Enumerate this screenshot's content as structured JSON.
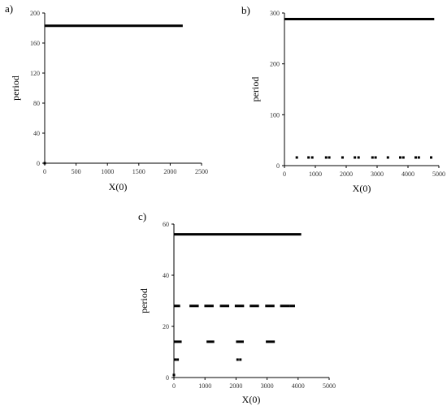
{
  "chart_data": [
    {
      "type": "scatter",
      "panel_label": "a)",
      "xlabel": "X(0)",
      "ylabel": "period",
      "xlim": [
        0,
        2500
      ],
      "ylim": [
        0,
        200
      ],
      "xticks": [
        0,
        500,
        1000,
        1500,
        2000,
        2500
      ],
      "yticks": [
        0,
        40,
        80,
        120,
        160,
        200
      ],
      "segments": [
        {
          "x": [
            0,
            2200
          ],
          "y": 183
        }
      ],
      "points": [
        {
          "x": 0,
          "y": 0
        }
      ]
    },
    {
      "type": "scatter",
      "panel_label": "b)",
      "xlabel": "X(0)",
      "ylabel": "period",
      "xlim": [
        0,
        5000
      ],
      "ylim": [
        0,
        300
      ],
      "xticks": [
        0,
        1000,
        2000,
        3000,
        4000,
        5000
      ],
      "yticks": [
        0,
        100,
        200,
        300
      ],
      "segments": [
        {
          "x": [
            0,
            4850
          ],
          "y": 288
        }
      ],
      "points": [
        {
          "x": 400,
          "y": 16
        },
        {
          "x": 780,
          "y": 16
        },
        {
          "x": 900,
          "y": 16
        },
        {
          "x": 1350,
          "y": 16
        },
        {
          "x": 1450,
          "y": 16
        },
        {
          "x": 1880,
          "y": 16
        },
        {
          "x": 2280,
          "y": 16
        },
        {
          "x": 2400,
          "y": 16
        },
        {
          "x": 2850,
          "y": 16
        },
        {
          "x": 2950,
          "y": 16
        },
        {
          "x": 3350,
          "y": 16
        },
        {
          "x": 3750,
          "y": 16
        },
        {
          "x": 3850,
          "y": 16
        },
        {
          "x": 4250,
          "y": 16
        },
        {
          "x": 4350,
          "y": 16
        },
        {
          "x": 4750,
          "y": 16
        }
      ]
    },
    {
      "type": "scatter",
      "panel_label": "c)",
      "xlabel": "X(0)",
      "ylabel": "period",
      "xlim": [
        0,
        5000
      ],
      "ylim": [
        0,
        60
      ],
      "xticks": [
        0,
        1000,
        2000,
        3000,
        4000,
        5000
      ],
      "yticks": [
        0,
        20,
        40,
        60
      ],
      "segments": [
        {
          "x": [
            0,
            4100
          ],
          "y": 56
        },
        {
          "x": [
            0,
            200
          ],
          "y": 28
        },
        {
          "x": [
            500,
            800
          ],
          "y": 28
        },
        {
          "x": [
            980,
            1280
          ],
          "y": 28
        },
        {
          "x": [
            1480,
            1780
          ],
          "y": 28
        },
        {
          "x": [
            1960,
            2260
          ],
          "y": 28
        },
        {
          "x": [
            2440,
            2740
          ],
          "y": 28
        },
        {
          "x": [
            2940,
            3240
          ],
          "y": 28
        },
        {
          "x": [
            3420,
            3720
          ],
          "y": 28
        },
        {
          "x": [
            3720,
            3900
          ],
          "y": 28
        },
        {
          "x": [
            0,
            250
          ],
          "y": 14
        },
        {
          "x": [
            1050,
            1300
          ],
          "y": 14
        },
        {
          "x": [
            2000,
            2250
          ],
          "y": 14
        },
        {
          "x": [
            2960,
            3250
          ],
          "y": 14
        }
      ],
      "points": [
        {
          "x": 40,
          "y": 7
        },
        {
          "x": 120,
          "y": 7
        },
        {
          "x": 2050,
          "y": 7
        },
        {
          "x": 2140,
          "y": 7
        },
        {
          "x": 0,
          "y": 1
        }
      ]
    }
  ]
}
